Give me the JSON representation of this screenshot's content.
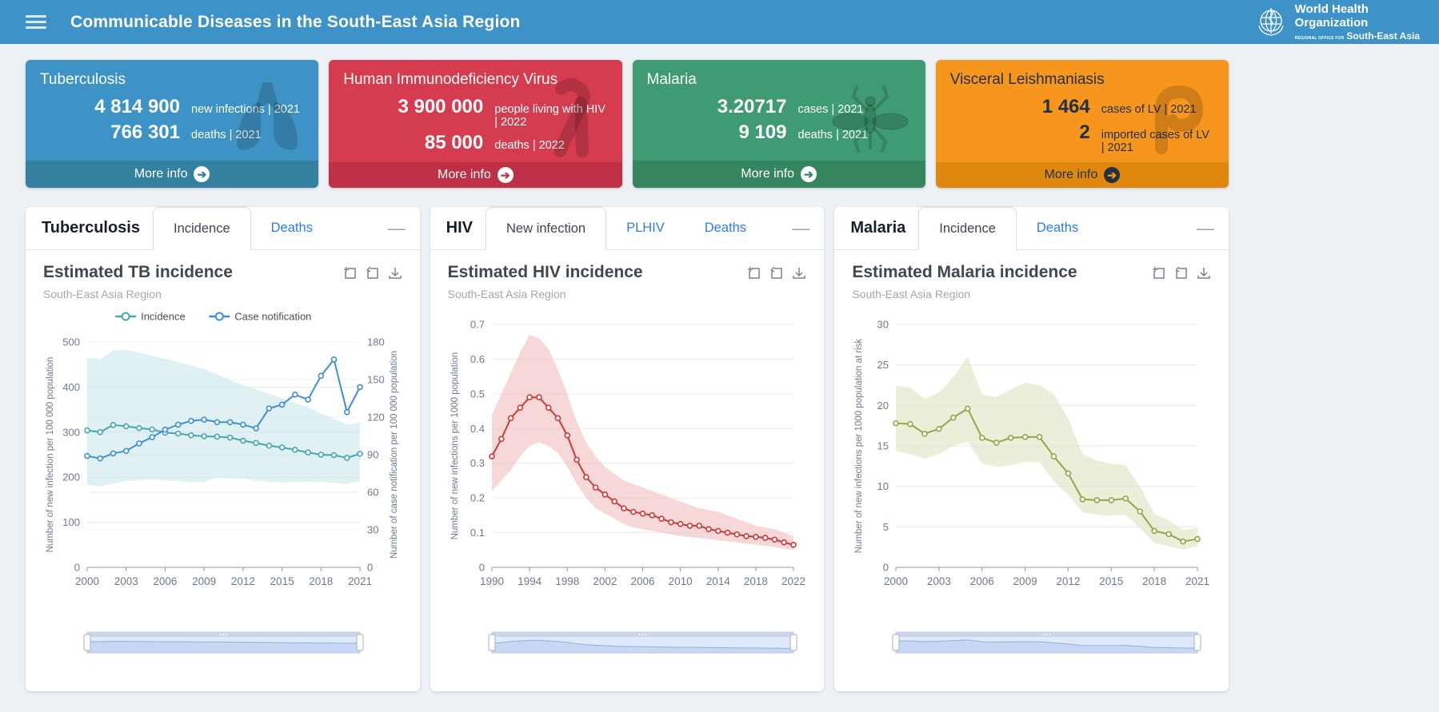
{
  "header": {
    "title": "Communicable Diseases in the South-East Asia Region",
    "logo": {
      "line1": "World Health",
      "line2": "Organization",
      "line3": "REGIONAL OFFICE FOR",
      "line4": "South-East Asia"
    }
  },
  "cards": [
    {
      "title": "Tuberculosis",
      "stats": [
        {
          "value": "4 814 900",
          "label": "new infections | 2021"
        },
        {
          "value": "766 301",
          "label": "deaths | 2021"
        }
      ],
      "more_label": "More info",
      "colors": {
        "bg": "#3e93c6",
        "footer": "#33809f",
        "text": "#ffffff",
        "arrow_bg": "#ffffff",
        "arrow_fg": "#33809f"
      }
    },
    {
      "title": "Human Immunodeficiency Virus",
      "stats": [
        {
          "value": "3 900 000",
          "label": "people living with HIV | 2022"
        },
        {
          "value": "85 000",
          "label": "deaths | 2022"
        }
      ],
      "more_label": "More info",
      "colors": {
        "bg": "#d53c4f",
        "footer": "#bd3045",
        "text": "#ffffff",
        "arrow_bg": "#ffffff",
        "arrow_fg": "#bd3045"
      }
    },
    {
      "title": "Malaria",
      "stats": [
        {
          "value": "3.20717",
          "label": "cases | 2021"
        },
        {
          "value": "9 109",
          "label": "deaths | 2021"
        }
      ],
      "more_label": "More info",
      "colors": {
        "bg": "#3f9b72",
        "footer": "#35855f",
        "text": "#ffffff",
        "arrow_bg": "#ffffff",
        "arrow_fg": "#35855f"
      }
    },
    {
      "title": "Visceral Leishmaniasis",
      "stats": [
        {
          "value": "1 464",
          "label": "cases of LV | 2021"
        },
        {
          "value": "2",
          "label": "imported cases of LV | 2021"
        }
      ],
      "more_label": "More info",
      "colors": {
        "bg": "#f6961d",
        "footer": "#e0880d",
        "text": "#22313f",
        "arrow_bg": "#22313f",
        "arrow_fg": "#f6961d"
      }
    }
  ],
  "panels": [
    {
      "name": "Tuberculosis",
      "tabs": [
        {
          "label": "Incidence",
          "active": true
        },
        {
          "label": "Deaths",
          "active": false
        }
      ]
    },
    {
      "name": "HIV",
      "tabs": [
        {
          "label": "New infection",
          "active": true
        },
        {
          "label": "PLHIV",
          "active": false
        },
        {
          "label": "Deaths",
          "active": false
        }
      ]
    },
    {
      "name": "Malaria",
      "tabs": [
        {
          "label": "Incidence",
          "active": true
        },
        {
          "label": "Deaths",
          "active": false
        }
      ]
    }
  ],
  "chart_data": [
    {
      "type": "line",
      "title": "Estimated TB incidence",
      "subtitle": "South-East Asia Region",
      "x": [
        2000,
        2001,
        2002,
        2003,
        2004,
        2005,
        2006,
        2007,
        2008,
        2009,
        2010,
        2011,
        2012,
        2013,
        2014,
        2015,
        2016,
        2017,
        2018,
        2019,
        2020,
        2021
      ],
      "xticks": [
        2000,
        2003,
        2006,
        2009,
        2012,
        2015,
        2018,
        2021
      ],
      "ylabel_left": "Number of new infection per 100 000 population",
      "ylabel_right": "Number of case notification per 100 000 population",
      "ylim_left": [
        0,
        500
      ],
      "yticks_left": [
        0,
        100,
        200,
        300,
        400,
        500
      ],
      "ylim_right": [
        0,
        180
      ],
      "yticks_right": [
        0,
        30,
        60,
        90,
        120,
        150,
        180
      ],
      "grid": true,
      "legend": [
        "Incidence",
        "Case notification"
      ],
      "legend_position": "top",
      "series": [
        {
          "name": "Incidence",
          "axis": "left",
          "color": "#48a5b2",
          "values": [
            304,
            300,
            316,
            313,
            309,
            306,
            299,
            297,
            293,
            291,
            290,
            288,
            281,
            276,
            270,
            266,
            261,
            255,
            250,
            249,
            243,
            252
          ],
          "band": {
            "color": "#c9e7ea",
            "upper": [
              465,
              462,
              481,
              483,
              477,
              470,
              463,
              456,
              448,
              440,
              428,
              416,
              405,
              395,
              385,
              375,
              365,
              355,
              342,
              330,
              316,
              322
            ],
            "lower": [
              183,
              180,
              186,
              192,
              194,
              195,
              193,
              192,
              188,
              190,
              199,
              198,
              197,
              193,
              190,
              188,
              189,
              190,
              189,
              187,
              185,
              192
            ]
          }
        },
        {
          "name": "Case notification",
          "axis": "right",
          "color": "#3e8ed8",
          "values": [
            89,
            87,
            91,
            93,
            99,
            104,
            110,
            114,
            117,
            118,
            116,
            116,
            114,
            111,
            127,
            130,
            138,
            134,
            153,
            166,
            124,
            144
          ]
        }
      ]
    },
    {
      "type": "line",
      "title": "Estimated HIV incidence",
      "subtitle": "South-East Asia Region",
      "x": [
        1990,
        1991,
        1992,
        1993,
        1994,
        1995,
        1996,
        1997,
        1998,
        1999,
        2000,
        2001,
        2002,
        2003,
        2004,
        2005,
        2006,
        2007,
        2008,
        2009,
        2010,
        2011,
        2012,
        2013,
        2014,
        2015,
        2016,
        2017,
        2018,
        2019,
        2020,
        2021,
        2022
      ],
      "xticks": [
        1990,
        1994,
        1998,
        2002,
        2006,
        2010,
        2014,
        2018,
        2022
      ],
      "ylabel_left": "Number of new infections per 1000 population",
      "ylim_left": [
        0,
        0.7
      ],
      "yticks_left": [
        0,
        0.1,
        0.2,
        0.3,
        0.4,
        0.5,
        0.6,
        0.7
      ],
      "grid": true,
      "series": [
        {
          "name": "New infections",
          "axis": "left",
          "color": "#cf3935",
          "values": [
            0.32,
            0.37,
            0.43,
            0.46,
            0.49,
            0.49,
            0.46,
            0.43,
            0.38,
            0.31,
            0.26,
            0.23,
            0.21,
            0.19,
            0.17,
            0.16,
            0.155,
            0.15,
            0.14,
            0.13,
            0.125,
            0.12,
            0.12,
            0.11,
            0.105,
            0.1,
            0.095,
            0.09,
            0.088,
            0.085,
            0.08,
            0.072,
            0.065
          ],
          "band": {
            "color": "#f2bec0",
            "upper": [
              0.44,
              0.5,
              0.56,
              0.62,
              0.67,
              0.66,
              0.63,
              0.57,
              0.5,
              0.42,
              0.36,
              0.32,
              0.29,
              0.27,
              0.25,
              0.24,
              0.23,
              0.22,
              0.21,
              0.2,
              0.19,
              0.18,
              0.17,
              0.165,
              0.16,
              0.15,
              0.14,
              0.13,
              0.12,
              0.115,
              0.11,
              0.1,
              0.09
            ],
            "lower": [
              0.22,
              0.25,
              0.28,
              0.32,
              0.35,
              0.36,
              0.35,
              0.33,
              0.29,
              0.24,
              0.2,
              0.17,
              0.155,
              0.14,
              0.125,
              0.115,
              0.11,
              0.105,
              0.1,
              0.095,
              0.09,
              0.087,
              0.085,
              0.082,
              0.078,
              0.075,
              0.072,
              0.068,
              0.065,
              0.062,
              0.058,
              0.054,
              0.05
            ]
          }
        }
      ]
    },
    {
      "type": "line",
      "title": "Estimated Malaria incidence",
      "subtitle": "South-East Asia Region",
      "x": [
        2000,
        2001,
        2002,
        2003,
        2004,
        2005,
        2006,
        2007,
        2008,
        2009,
        2010,
        2011,
        2012,
        2013,
        2014,
        2015,
        2016,
        2017,
        2018,
        2019,
        2020,
        2021
      ],
      "xticks": [
        2000,
        2003,
        2006,
        2009,
        2012,
        2015,
        2018,
        2021
      ],
      "ylabel_left": "Number of new infections per 1000 population at risk",
      "ylim_left": [
        0,
        30
      ],
      "yticks_left": [
        0,
        5,
        10,
        15,
        20,
        25,
        30
      ],
      "grid": true,
      "series": [
        {
          "name": "Incidence",
          "axis": "left",
          "color": "#94a748",
          "values": [
            17.8,
            17.7,
            16.5,
            17.1,
            18.5,
            19.6,
            16.0,
            15.4,
            16.0,
            16.1,
            16.1,
            13.7,
            11.6,
            8.4,
            8.3,
            8.3,
            8.5,
            6.9,
            4.5,
            4.1,
            3.2,
            3.5
          ],
          "band": {
            "color": "#dde4c2",
            "upper": [
              22.4,
              22.2,
              20.8,
              21.6,
              23.5,
              26.0,
              21.4,
              21.0,
              22.0,
              22.8,
              22.5,
              21.4,
              18.4,
              14.0,
              13.2,
              12.8,
              12.6,
              10.0,
              6.6,
              5.8,
              4.6,
              4.9
            ],
            "lower": [
              14.4,
              14.0,
              13.4,
              14.0,
              15.0,
              15.5,
              12.8,
              12.4,
              12.6,
              13.0,
              13.0,
              10.6,
              9.0,
              6.8,
              6.5,
              6.4,
              6.5,
              4.8,
              3.0,
              2.6,
              2.2,
              2.6
            ]
          }
        }
      ]
    }
  ]
}
